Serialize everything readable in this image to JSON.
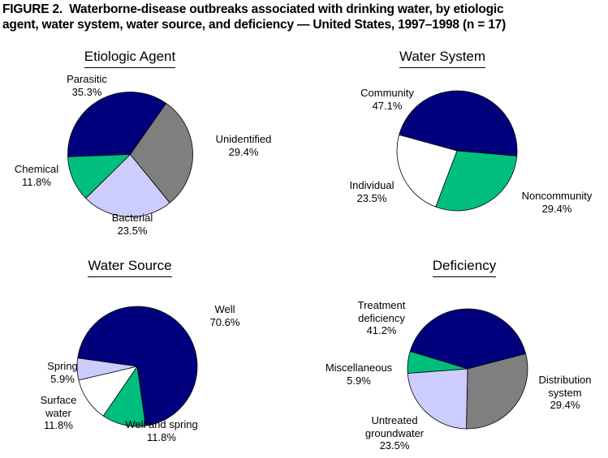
{
  "figure": {
    "title": "FIGURE 2.  Waterborne-disease outbreaks associated with drinking water, by etiologic\nagent, water system, water source, and deficiency — United States, 1997–1998 (n = 17)",
    "n": 17
  },
  "palette": {
    "navy": "#00007d",
    "green": "#00bf7c",
    "gray": "#7f7f7f",
    "lavender": "#ccccff",
    "white": "#ffffff"
  },
  "chart_data": [
    {
      "type": "pie",
      "title": "Etiologic Agent",
      "value_unit": "%",
      "legend_position": "labels-around-pie",
      "start_angle": 267.9,
      "slices": [
        {
          "name": "Parasitic",
          "value": 35.3,
          "color": "#00007d",
          "display": "Parasitic\n35.3%"
        },
        {
          "name": "Unidentified",
          "value": 29.4,
          "color": "#7f7f7f",
          "display": "Unidentified\n29.4%"
        },
        {
          "name": "Bacterial",
          "value": 23.5,
          "color": "#ccccff",
          "display": "Bacterial\n23.5%"
        },
        {
          "name": "Chemical",
          "value": 11.8,
          "color": "#00bf7c",
          "display": "Chemical\n11.8%"
        }
      ]
    },
    {
      "type": "pie",
      "title": "Water System",
      "value_unit": "%",
      "legend_position": "labels-around-pie",
      "start_angle": 285.4,
      "slices": [
        {
          "name": "Community",
          "value": 47.1,
          "color": "#00007d",
          "display": "Community\n47.1%"
        },
        {
          "name": "Noncommunity",
          "value": 29.4,
          "color": "#00bf7c",
          "display": "Noncommunity\n29.4%"
        },
        {
          "name": "Individual",
          "value": 23.5,
          "color": "#ffffff",
          "display": "Individual\n23.5%"
        }
      ]
    },
    {
      "type": "pie",
      "title": "Water Source",
      "value_unit": "%",
      "legend_position": "labels-around-pie",
      "start_angle": 278,
      "slices": [
        {
          "name": "Well",
          "value": 70.6,
          "color": "#00007d",
          "display": "Well\n70.6%"
        },
        {
          "name": "Well and spring",
          "value": 11.8,
          "color": "#00bf7c",
          "display": "Well and spring\n11.8%"
        },
        {
          "name": "Surface water",
          "value": 11.8,
          "color": "#ffffff",
          "display": "Surface\nwater\n11.8%"
        },
        {
          "name": "Spring",
          "value": 5.9,
          "color": "#ccccff",
          "display": "Spring\n5.9%"
        }
      ]
    },
    {
      "type": "pie",
      "title": "Deficiency",
      "value_unit": "%",
      "legend_position": "labels-around-pie",
      "start_angle": 287,
      "slices": [
        {
          "name": "Treatment deficiency",
          "value": 41.2,
          "color": "#00007d",
          "display": "Treatment\ndeficiency\n41.2%"
        },
        {
          "name": "Distribution system",
          "value": 29.4,
          "color": "#7f7f7f",
          "display": "Distribution\nsystem\n29.4%"
        },
        {
          "name": "Untreated groundwater",
          "value": 23.5,
          "color": "#ccccff",
          "display": "Untreated\ngroundwater\n23.5%"
        },
        {
          "name": "Miscellaneous",
          "value": 5.9,
          "color": "#00bf7c",
          "display": "Miscellaneous\n5.9%"
        }
      ]
    }
  ]
}
